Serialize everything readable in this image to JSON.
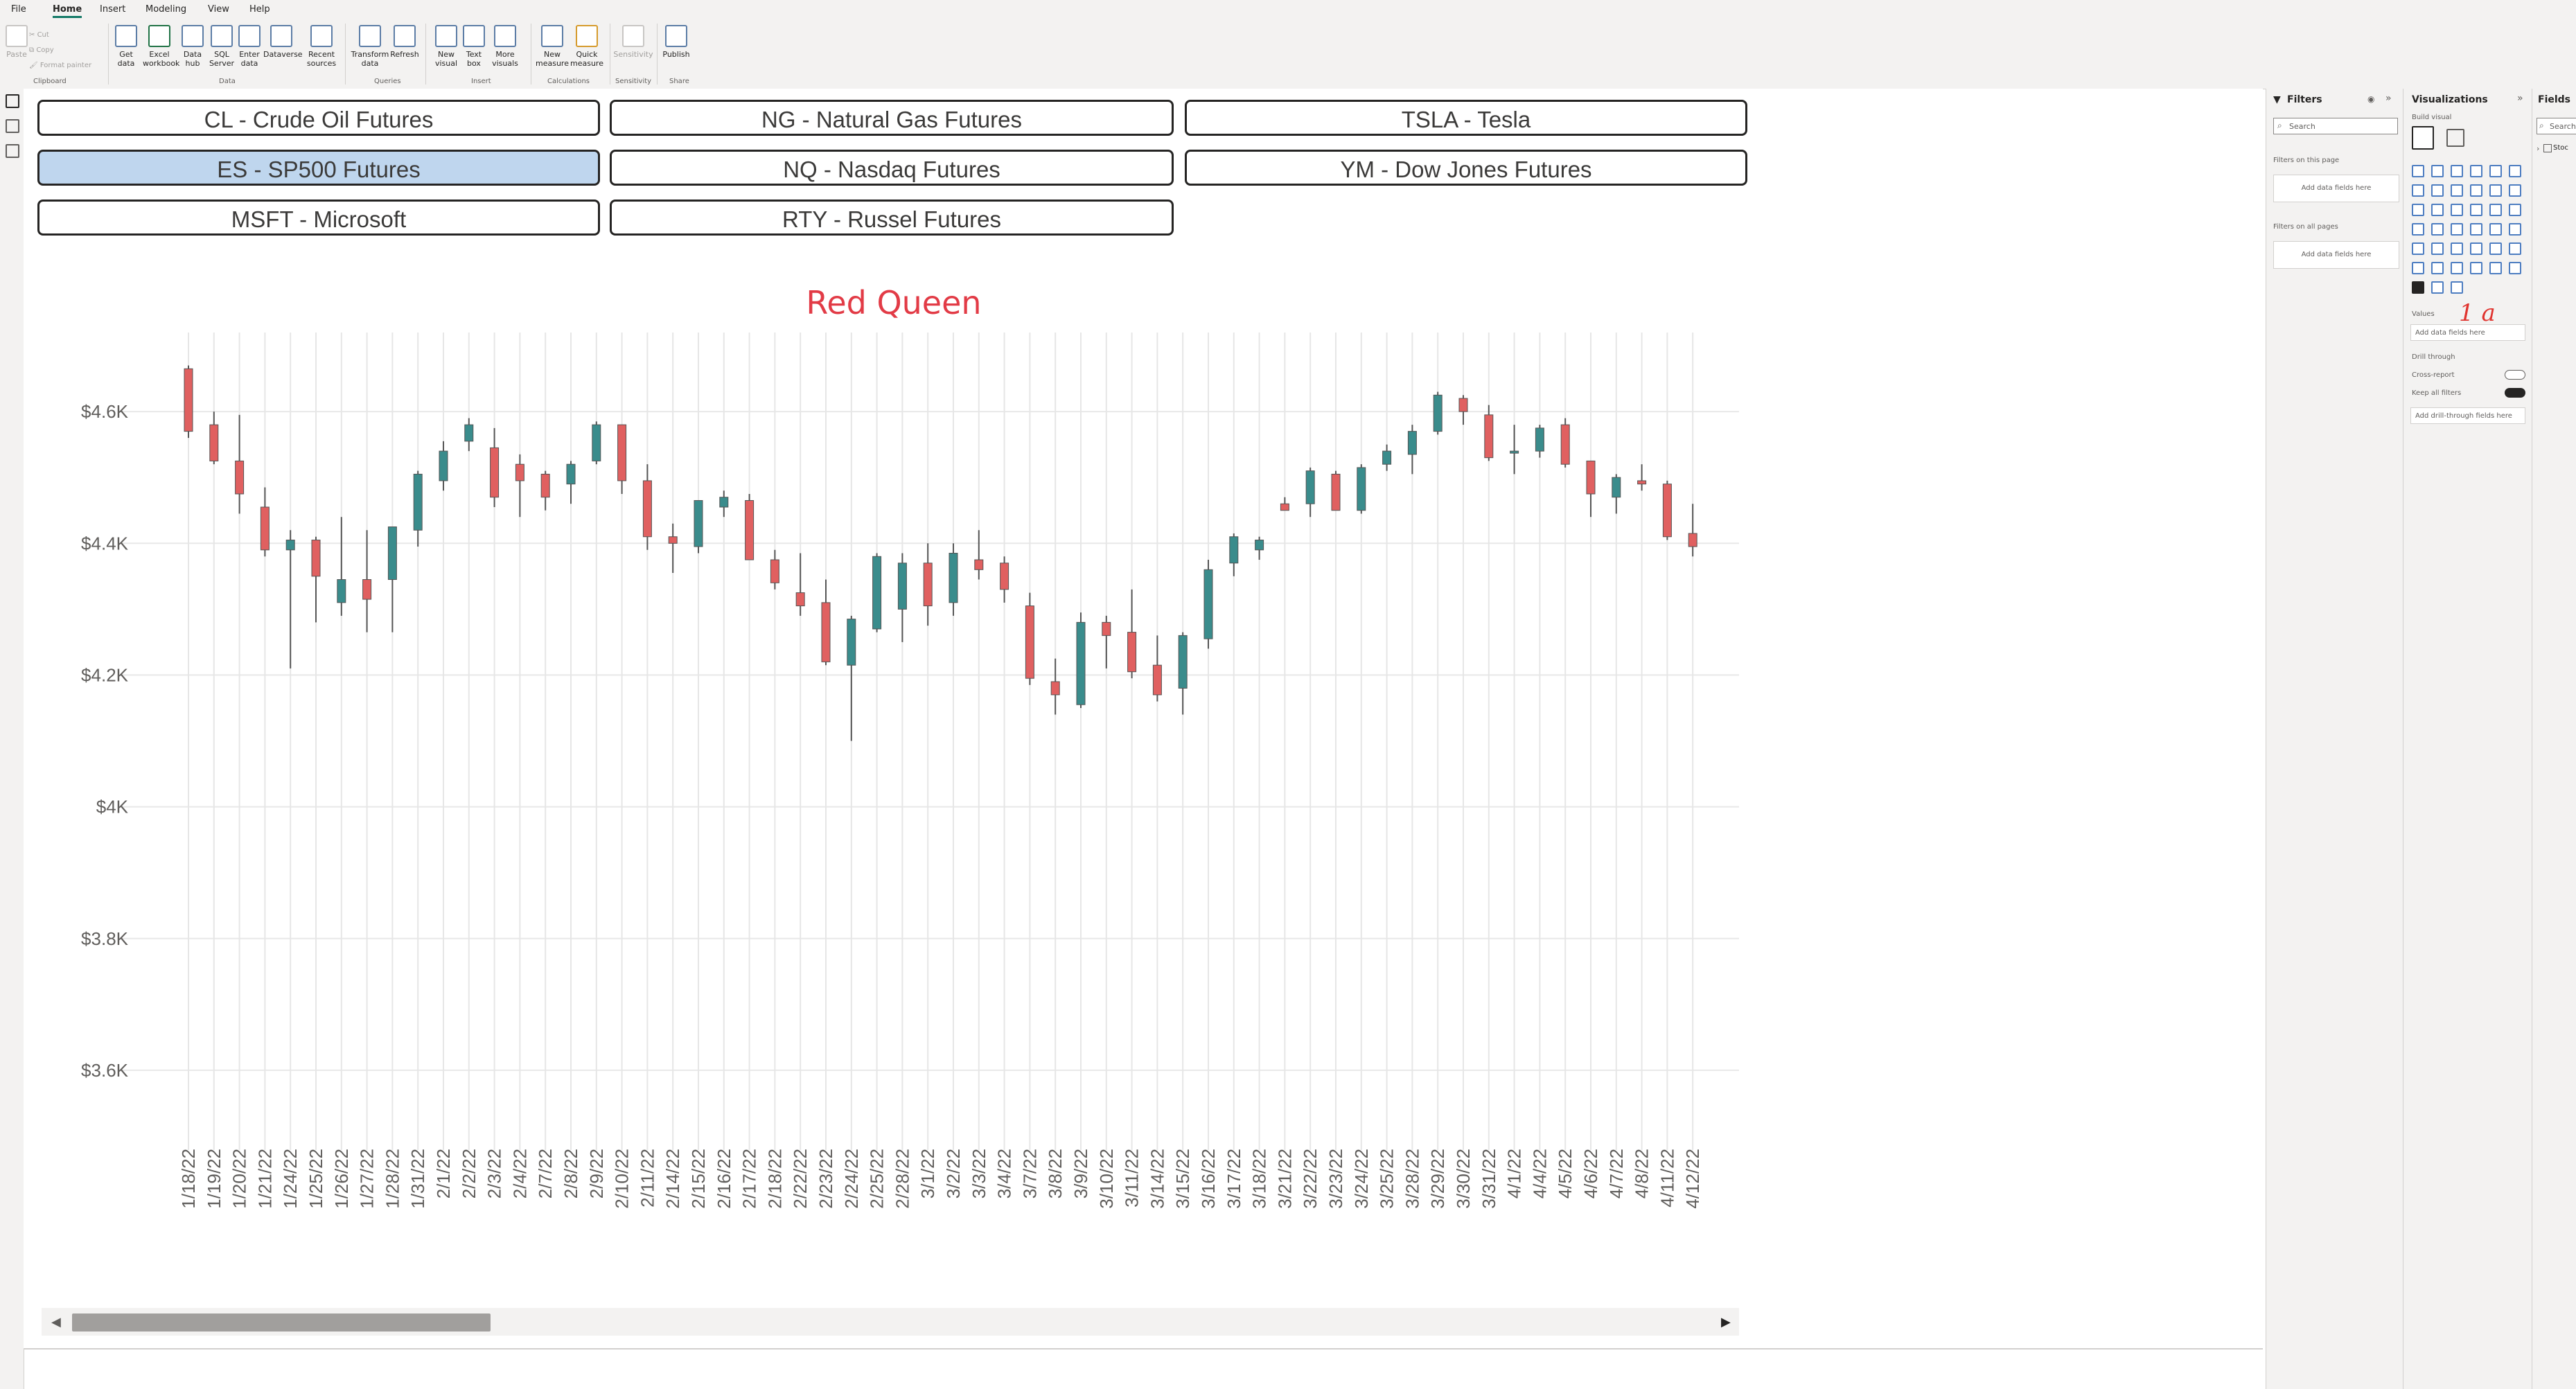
{
  "ribbon": {
    "menu": [
      "File",
      "Home",
      "Insert",
      "Modeling",
      "View",
      "Help"
    ],
    "active_menu": "Home",
    "buttons": [
      {
        "label": "Paste",
        "disabled": true
      },
      {
        "label": "Cut",
        "disabled": true
      },
      {
        "label": "Copy",
        "disabled": true
      },
      {
        "label": "Format painter",
        "disabled": true
      },
      {
        "label": "Get data",
        "disabled": false
      },
      {
        "label": "Excel workbook",
        "disabled": false
      },
      {
        "label": "Data hub",
        "disabled": false
      },
      {
        "label": "SQL Server",
        "disabled": false
      },
      {
        "label": "Enter data",
        "disabled": false
      },
      {
        "label": "Dataverse",
        "disabled": false
      },
      {
        "label": "Recent sources",
        "disabled": false
      },
      {
        "label": "Transform data",
        "disabled": false
      },
      {
        "label": "Refresh",
        "disabled": false
      },
      {
        "label": "New visual",
        "disabled": false
      },
      {
        "label": "Text box",
        "disabled": false
      },
      {
        "label": "More visuals",
        "disabled": false
      },
      {
        "label": "New measure",
        "disabled": false
      },
      {
        "label": "Quick measure",
        "disabled": false
      },
      {
        "label": "Sensitivity",
        "disabled": true
      },
      {
        "label": "Publish",
        "disabled": false
      }
    ],
    "groups": [
      "Clipboard",
      "Data",
      "Queries",
      "Insert",
      "Calculations",
      "Sensitivity",
      "Share"
    ]
  },
  "slicers": [
    {
      "label": "CL - Crude Oil Futures",
      "selected": false
    },
    {
      "label": "NG - Natural Gas Futures",
      "selected": false
    },
    {
      "label": "TSLA - Tesla",
      "selected": false
    },
    {
      "label": "ES - SP500 Futures",
      "selected": true
    },
    {
      "label": "NQ - Nasdaq Futures",
      "selected": false
    },
    {
      "label": "YM - Dow Jones Futures",
      "selected": false
    },
    {
      "label": "MSFT - Microsoft",
      "selected": false
    },
    {
      "label": "RTY - Russel Futures",
      "selected": false
    }
  ],
  "chart_data": {
    "type": "candlestick",
    "title": "Red Queen",
    "ylim": [
      3500,
      4720
    ],
    "y_ticks": [
      "$4.6K",
      "$4.4K",
      "$4.2K",
      "$4K",
      "$3.8K",
      "$3.6K"
    ],
    "y_tick_values": [
      4600,
      4400,
      4200,
      4000,
      3800,
      3600
    ],
    "up_color": "#3a8c8c",
    "down_color": "#e06060",
    "grid": true,
    "candles": [
      {
        "date": "1/18/22",
        "open": 4665,
        "high": 4670,
        "low": 4560,
        "close": 4570
      },
      {
        "date": "1/19/22",
        "open": 4580,
        "high": 4600,
        "low": 4520,
        "close": 4525
      },
      {
        "date": "1/20/22",
        "open": 4525,
        "high": 4595,
        "low": 4445,
        "close": 4475
      },
      {
        "date": "1/21/22",
        "open": 4455,
        "high": 4485,
        "low": 4380,
        "close": 4390
      },
      {
        "date": "1/24/22",
        "open": 4390,
        "high": 4420,
        "low": 4210,
        "close": 4405
      },
      {
        "date": "1/25/22",
        "open": 4405,
        "high": 4410,
        "low": 4280,
        "close": 4350
      },
      {
        "date": "1/26/22",
        "open": 4310,
        "high": 4440,
        "low": 4290,
        "close": 4345
      },
      {
        "date": "1/27/22",
        "open": 4345,
        "high": 4420,
        "low": 4265,
        "close": 4315
      },
      {
        "date": "1/28/22",
        "open": 4345,
        "high": 4420,
        "low": 4265,
        "close": 4425
      },
      {
        "date": "1/31/22",
        "open": 4420,
        "high": 4510,
        "low": 4395,
        "close": 4505
      },
      {
        "date": "2/1/22",
        "open": 4495,
        "high": 4555,
        "low": 4480,
        "close": 4540
      },
      {
        "date": "2/2/22",
        "open": 4555,
        "high": 4590,
        "low": 4540,
        "close": 4580
      },
      {
        "date": "2/3/22",
        "open": 4545,
        "high": 4575,
        "low": 4455,
        "close": 4470
      },
      {
        "date": "2/4/22",
        "open": 4520,
        "high": 4535,
        "low": 4440,
        "close": 4495
      },
      {
        "date": "2/7/22",
        "open": 4505,
        "high": 4510,
        "low": 4450,
        "close": 4470
      },
      {
        "date": "2/8/22",
        "open": 4490,
        "high": 4525,
        "low": 4460,
        "close": 4520
      },
      {
        "date": "2/9/22",
        "open": 4525,
        "high": 4585,
        "low": 4520,
        "close": 4580
      },
      {
        "date": "2/10/22",
        "open": 4580,
        "high": 4580,
        "low": 4475,
        "close": 4495
      },
      {
        "date": "2/11/22",
        "open": 4495,
        "high": 4520,
        "low": 4390,
        "close": 4410
      },
      {
        "date": "2/14/22",
        "open": 4410,
        "high": 4430,
        "low": 4355,
        "close": 4400
      },
      {
        "date": "2/15/22",
        "open": 4395,
        "high": 4465,
        "low": 4385,
        "close": 4465
      },
      {
        "date": "2/16/22",
        "open": 4455,
        "high": 4480,
        "low": 4440,
        "close": 4470
      },
      {
        "date": "2/17/22",
        "open": 4465,
        "high": 4475,
        "low": 4375,
        "close": 4375
      },
      {
        "date": "2/18/22",
        "open": 4375,
        "high": 4390,
        "low": 4330,
        "close": 4340
      },
      {
        "date": "2/22/22",
        "open": 4325,
        "high": 4385,
        "low": 4290,
        "close": 4305
      },
      {
        "date": "2/23/22",
        "open": 4310,
        "high": 4345,
        "low": 4215,
        "close": 4220
      },
      {
        "date": "2/24/22",
        "open": 4215,
        "high": 4290,
        "low": 4100,
        "close": 4285
      },
      {
        "date": "2/25/22",
        "open": 4270,
        "high": 4385,
        "low": 4265,
        "close": 4380
      },
      {
        "date": "2/28/22",
        "open": 4300,
        "high": 4385,
        "low": 4250,
        "close": 4370
      },
      {
        "date": "3/1/22",
        "open": 4370,
        "high": 4400,
        "low": 4275,
        "close": 4305
      },
      {
        "date": "3/2/22",
        "open": 4310,
        "high": 4400,
        "low": 4290,
        "close": 4385
      },
      {
        "date": "3/3/22",
        "open": 4375,
        "high": 4420,
        "low": 4345,
        "close": 4360
      },
      {
        "date": "3/4/22",
        "open": 4370,
        "high": 4380,
        "low": 4310,
        "close": 4330
      },
      {
        "date": "3/7/22",
        "open": 4305,
        "high": 4325,
        "low": 4185,
        "close": 4195
      },
      {
        "date": "3/8/22",
        "open": 4190,
        "high": 4225,
        "low": 4140,
        "close": 4170
      },
      {
        "date": "3/9/22",
        "open": 4155,
        "high": 4295,
        "low": 4150,
        "close": 4280
      },
      {
        "date": "3/10/22",
        "open": 4280,
        "high": 4290,
        "low": 4210,
        "close": 4260
      },
      {
        "date": "3/11/22",
        "open": 4265,
        "high": 4330,
        "low": 4195,
        "close": 4205
      },
      {
        "date": "3/14/22",
        "open": 4215,
        "high": 4260,
        "low": 4160,
        "close": 4170
      },
      {
        "date": "3/15/22",
        "open": 4180,
        "high": 4265,
        "low": 4140,
        "close": 4260
      },
      {
        "date": "3/16/22",
        "open": 4255,
        "high": 4375,
        "low": 4240,
        "close": 4360
      },
      {
        "date": "3/17/22",
        "open": 4370,
        "high": 4415,
        "low": 4350,
        "close": 4410
      },
      {
        "date": "3/18/22",
        "open": 4390,
        "high": 4410,
        "low": 4375,
        "close": 4405
      },
      {
        "date": "3/21/22",
        "open": 4460,
        "high": 4470,
        "low": 4450,
        "close": 4450
      },
      {
        "date": "3/22/22",
        "open": 4460,
        "high": 4515,
        "low": 4440,
        "close": 4510
      },
      {
        "date": "3/23/22",
        "open": 4505,
        "high": 4510,
        "low": 4450,
        "close": 4450
      },
      {
        "date": "3/24/22",
        "open": 4450,
        "high": 4520,
        "low": 4445,
        "close": 4515
      },
      {
        "date": "3/25/22",
        "open": 4520,
        "high": 4550,
        "low": 4510,
        "close": 4540
      },
      {
        "date": "3/28/22",
        "open": 4535,
        "high": 4580,
        "low": 4505,
        "close": 4570
      },
      {
        "date": "3/29/22",
        "open": 4570,
        "high": 4630,
        "low": 4565,
        "close": 4625
      },
      {
        "date": "3/30/22",
        "open": 4620,
        "high": 4625,
        "low": 4580,
        "close": 4600
      },
      {
        "date": "3/31/22",
        "open": 4595,
        "high": 4610,
        "low": 4525,
        "close": 4530
      },
      {
        "date": "4/1/22",
        "open": 4540,
        "high": 4580,
        "low": 4505,
        "close": 4540
      },
      {
        "date": "4/4/22",
        "open": 4540,
        "high": 4580,
        "low": 4530,
        "close": 4575
      },
      {
        "date": "4/5/22",
        "open": 4580,
        "high": 4590,
        "low": 4515,
        "close": 4520
      },
      {
        "date": "4/6/22",
        "open": 4525,
        "high": 4525,
        "low": 4440,
        "close": 4475
      },
      {
        "date": "4/7/22",
        "open": 4470,
        "high": 4505,
        "low": 4445,
        "close": 4500
      },
      {
        "date": "4/8/22",
        "open": 4495,
        "high": 4520,
        "low": 4480,
        "close": 4490
      },
      {
        "date": "4/11/22",
        "open": 4490,
        "high": 4495,
        "low": 4405,
        "close": 4410
      },
      {
        "date": "4/12/22",
        "open": 4415,
        "high": 4460,
        "low": 4380,
        "close": 4395
      }
    ]
  },
  "filters_pane": {
    "title": "Filters",
    "search_placeholder": "Search",
    "on_this_page": "Filters on this page",
    "on_all_pages": "Filters on all pages",
    "add_fields": "Add data fields here"
  },
  "viz_pane": {
    "title": "Visualizations",
    "build_visual": "Build visual",
    "values": "Values",
    "add_fields": "Add data fields here",
    "drill_through": "Drill through",
    "cross_report": "Cross-report",
    "keep_all_filters": "Keep all filters",
    "add_drill": "Add drill-through fields here",
    "annotation": "1 a",
    "annotation_color": "#e0342f"
  },
  "fields_pane": {
    "title": "Fields",
    "search_placeholder": "Search",
    "table": "Stoc"
  }
}
